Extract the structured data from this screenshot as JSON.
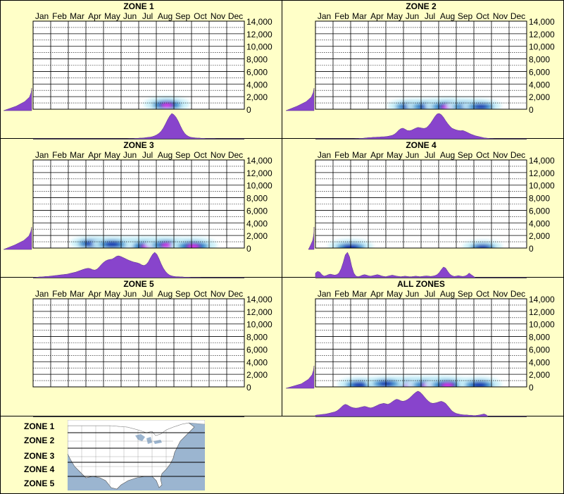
{
  "months": [
    "Jan",
    "Feb",
    "Mar",
    "Apr",
    "May",
    "Jun",
    "Jul",
    "Aug",
    "Sep",
    "Oct",
    "Nov",
    "Dec"
  ],
  "y_ticks": [
    "14,000",
    "12,000",
    "10,000",
    "8,000",
    "6,000",
    "4,000",
    "2,000",
    "0"
  ],
  "colors": {
    "background": "#ffffc8",
    "density": "#8844cc",
    "heat_low": "#c8f0f8",
    "heat_mid": "#2288cc",
    "heat_high": "#0000aa",
    "heat_peak": "#ff00ff"
  },
  "chart_data": [
    {
      "type": "heatmap",
      "title": "ZONE 1",
      "ylim": [
        0,
        14000
      ],
      "hotspots": [
        {
          "month": 7.6,
          "elevation": 800,
          "intensity": 0.8
        }
      ],
      "month_density": [
        0,
        0,
        0,
        0,
        0,
        0,
        0,
        0,
        0,
        0,
        0,
        0,
        0,
        0,
        0,
        0,
        0,
        0,
        0,
        0,
        0,
        0,
        0,
        0,
        0,
        0,
        0,
        0,
        0,
        0,
        0,
        0,
        0,
        0,
        0,
        0,
        0,
        0,
        0,
        0,
        0,
        0,
        0,
        0,
        0,
        0.01,
        0.01,
        0.01,
        0.02,
        0.02,
        0.03,
        0.03,
        0.04,
        0.05,
        0.06,
        0.07,
        0.09,
        0.12,
        0.16,
        0.22,
        0.3,
        0.42,
        0.58,
        0.75,
        0.9,
        1.0,
        0.95,
        0.85,
        0.7,
        0.52,
        0.35,
        0.22,
        0.14,
        0.09,
        0.06,
        0.05,
        0.04,
        0.03,
        0.03,
        0.02,
        0.02,
        0.01,
        0.01,
        0.01,
        0.01,
        0.01,
        0,
        0,
        0,
        0,
        0,
        0,
        0,
        0,
        0,
        0,
        0,
        0,
        0,
        0
      ],
      "elevation_density": [
        0.0,
        0.02,
        0.08,
        0.25,
        0.55,
        1.0
      ]
    },
    {
      "type": "heatmap",
      "title": "ZONE 2",
      "ylim": [
        0,
        14000
      ],
      "hotspots": [
        {
          "month": 5.3,
          "elevation": 500,
          "intensity": 0.5
        },
        {
          "month": 6.3,
          "elevation": 500,
          "intensity": 0.55
        },
        {
          "month": 7.5,
          "elevation": 500,
          "intensity": 1.0
        },
        {
          "month": 8.6,
          "elevation": 500,
          "intensity": 0.6
        },
        {
          "month": 9.4,
          "elevation": 500,
          "intensity": 0.4
        }
      ],
      "month_density": [
        0,
        0,
        0,
        0,
        0,
        0,
        0,
        0,
        0,
        0,
        0,
        0,
        0,
        0,
        0,
        0,
        0,
        0,
        0,
        0.01,
        0.01,
        0.02,
        0.02,
        0.03,
        0.04,
        0.05,
        0.05,
        0.06,
        0.06,
        0.07,
        0.07,
        0.08,
        0.08,
        0.09,
        0.1,
        0.12,
        0.14,
        0.18,
        0.25,
        0.34,
        0.4,
        0.42,
        0.38,
        0.33,
        0.32,
        0.34,
        0.38,
        0.42,
        0.45,
        0.44,
        0.42,
        0.41,
        0.44,
        0.52,
        0.62,
        0.75,
        0.88,
        0.98,
        1.0,
        0.95,
        0.85,
        0.72,
        0.6,
        0.5,
        0.42,
        0.38,
        0.35,
        0.33,
        0.32,
        0.33,
        0.3,
        0.26,
        0.22,
        0.18,
        0.15,
        0.12,
        0.1,
        0.08,
        0.06,
        0.04,
        0.03,
        0.02,
        0.01,
        0.01,
        0,
        0,
        0,
        0,
        0,
        0,
        0,
        0,
        0,
        0,
        0,
        0,
        0,
        0,
        0,
        0
      ],
      "elevation_density": [
        0.0,
        0.03,
        0.1,
        0.28,
        0.6,
        1.0
      ]
    },
    {
      "type": "heatmap",
      "title": "ZONE 3",
      "ylim": [
        0,
        14000
      ],
      "hotspots": [
        {
          "month": 3.3,
          "elevation": 800,
          "intensity": 0.45
        },
        {
          "month": 5.6,
          "elevation": 400,
          "intensity": 1.0
        },
        {
          "month": 6.5,
          "elevation": 400,
          "intensity": 1.0
        },
        {
          "month": 7.6,
          "elevation": 600,
          "intensity": 0.8
        },
        {
          "month": 9.1,
          "elevation": 400,
          "intensity": 1.0
        },
        {
          "month": 4.5,
          "elevation": 700,
          "intensity": 0.55
        }
      ],
      "month_density": [
        0.01,
        0.01,
        0.02,
        0.03,
        0.03,
        0.04,
        0.05,
        0.05,
        0.06,
        0.07,
        0.08,
        0.09,
        0.1,
        0.11,
        0.12,
        0.13,
        0.14,
        0.16,
        0.18,
        0.2,
        0.22,
        0.25,
        0.28,
        0.31,
        0.34,
        0.36,
        0.37,
        0.35,
        0.31,
        0.3,
        0.34,
        0.42,
        0.52,
        0.6,
        0.66,
        0.7,
        0.72,
        0.73,
        0.78,
        0.84,
        0.86,
        0.84,
        0.8,
        0.76,
        0.72,
        0.68,
        0.65,
        0.62,
        0.6,
        0.58,
        0.55,
        0.5,
        0.48,
        0.52,
        0.62,
        0.78,
        0.92,
        1.0,
        0.92,
        0.75,
        0.55,
        0.38,
        0.25,
        0.16,
        0.1,
        0.07,
        0.05,
        0.04,
        0.04,
        0.03,
        0.03,
        0.02,
        0.02,
        0.02,
        0.01,
        0.01,
        0.01,
        0.01,
        0.01,
        0,
        0,
        0,
        0,
        0,
        0,
        0,
        0,
        0,
        0,
        0,
        0,
        0,
        0,
        0,
        0,
        0,
        0,
        0,
        0,
        0
      ],
      "elevation_density": [
        0.0,
        0.03,
        0.1,
        0.28,
        0.6,
        1.0
      ]
    },
    {
      "type": "heatmap",
      "title": "ZONE 4",
      "ylim": [
        0,
        14000
      ],
      "hotspots": [
        {
          "month": 2.0,
          "elevation": 200,
          "intensity": 0.75
        },
        {
          "month": 9.5,
          "elevation": 200,
          "intensity": 0.3
        }
      ],
      "month_density": [
        0.18,
        0.25,
        0.22,
        0.12,
        0.06,
        0.08,
        0.12,
        0.14,
        0.12,
        0.1,
        0.12,
        0.18,
        0.35,
        0.6,
        0.9,
        1.0,
        0.82,
        0.45,
        0.18,
        0.06,
        0.04,
        0.06,
        0.1,
        0.12,
        0.1,
        0.07,
        0.06,
        0.08,
        0.1,
        0.12,
        0.1,
        0.07,
        0.05,
        0.04,
        0.06,
        0.08,
        0.1,
        0.08,
        0.06,
        0.05,
        0.04,
        0.05,
        0.06,
        0.05,
        0.04,
        0.04,
        0.05,
        0.06,
        0.05,
        0.04,
        0.05,
        0.06,
        0.07,
        0.06,
        0.05,
        0.06,
        0.08,
        0.12,
        0.2,
        0.32,
        0.42,
        0.38,
        0.25,
        0.14,
        0.08,
        0.05,
        0.06,
        0.08,
        0.06,
        0.05,
        0.06,
        0.1,
        0.18,
        0.12,
        0.06,
        0,
        0,
        0,
        0,
        0,
        0,
        0,
        0,
        0,
        0,
        0,
        0,
        0,
        0,
        0,
        0,
        0,
        0,
        0,
        0,
        0,
        0,
        0,
        0,
        0
      ],
      "elevation_density": [
        0.0,
        0.0,
        0.02,
        0.05,
        0.12,
        0.2
      ]
    },
    {
      "type": "heatmap",
      "title": "ZONE 5",
      "ylim": [
        0,
        14000
      ],
      "hotspots": [],
      "month_density": [],
      "elevation_density": []
    },
    {
      "type": "heatmap",
      "title": "ALL ZONES",
      "ylim": [
        0,
        14000
      ],
      "hotspots": [
        {
          "month": 2.5,
          "elevation": 400,
          "intensity": 0.6
        },
        {
          "month": 5.3,
          "elevation": 400,
          "intensity": 0.9
        },
        {
          "month": 6.4,
          "elevation": 400,
          "intensity": 0.9
        },
        {
          "month": 7.5,
          "elevation": 400,
          "intensity": 1.0
        },
        {
          "month": 9.3,
          "elevation": 400,
          "intensity": 0.7
        },
        {
          "month": 4.0,
          "elevation": 600,
          "intensity": 0.45
        }
      ],
      "month_density": [
        0.05,
        0.06,
        0.07,
        0.08,
        0.09,
        0.1,
        0.12,
        0.14,
        0.16,
        0.18,
        0.22,
        0.28,
        0.36,
        0.44,
        0.48,
        0.45,
        0.4,
        0.36,
        0.34,
        0.33,
        0.34,
        0.36,
        0.38,
        0.4,
        0.38,
        0.35,
        0.34,
        0.36,
        0.4,
        0.44,
        0.48,
        0.5,
        0.52,
        0.5,
        0.48,
        0.52,
        0.58,
        0.64,
        0.68,
        0.66,
        0.62,
        0.6,
        0.62,
        0.66,
        0.72,
        0.8,
        0.88,
        0.95,
        1.0,
        0.96,
        0.88,
        0.78,
        0.68,
        0.6,
        0.54,
        0.52,
        0.53,
        0.55,
        0.58,
        0.6,
        0.57,
        0.52,
        0.42,
        0.32,
        0.22,
        0.16,
        0.12,
        0.1,
        0.08,
        0.07,
        0.06,
        0.06,
        0.05,
        0.05,
        0.04,
        0.04,
        0.05,
        0.06,
        0.08,
        0.1,
        0.07,
        0,
        0,
        0,
        0,
        0,
        0,
        0,
        0,
        0,
        0,
        0,
        0,
        0,
        0,
        0,
        0,
        0,
        0,
        0
      ],
      "elevation_density": [
        0.0,
        0.02,
        0.07,
        0.2,
        0.45,
        1.0
      ]
    }
  ],
  "legend": {
    "zones": [
      "ZONE 1",
      "ZONE 2",
      "ZONE 3",
      "ZONE 4",
      "ZONE 5"
    ]
  }
}
